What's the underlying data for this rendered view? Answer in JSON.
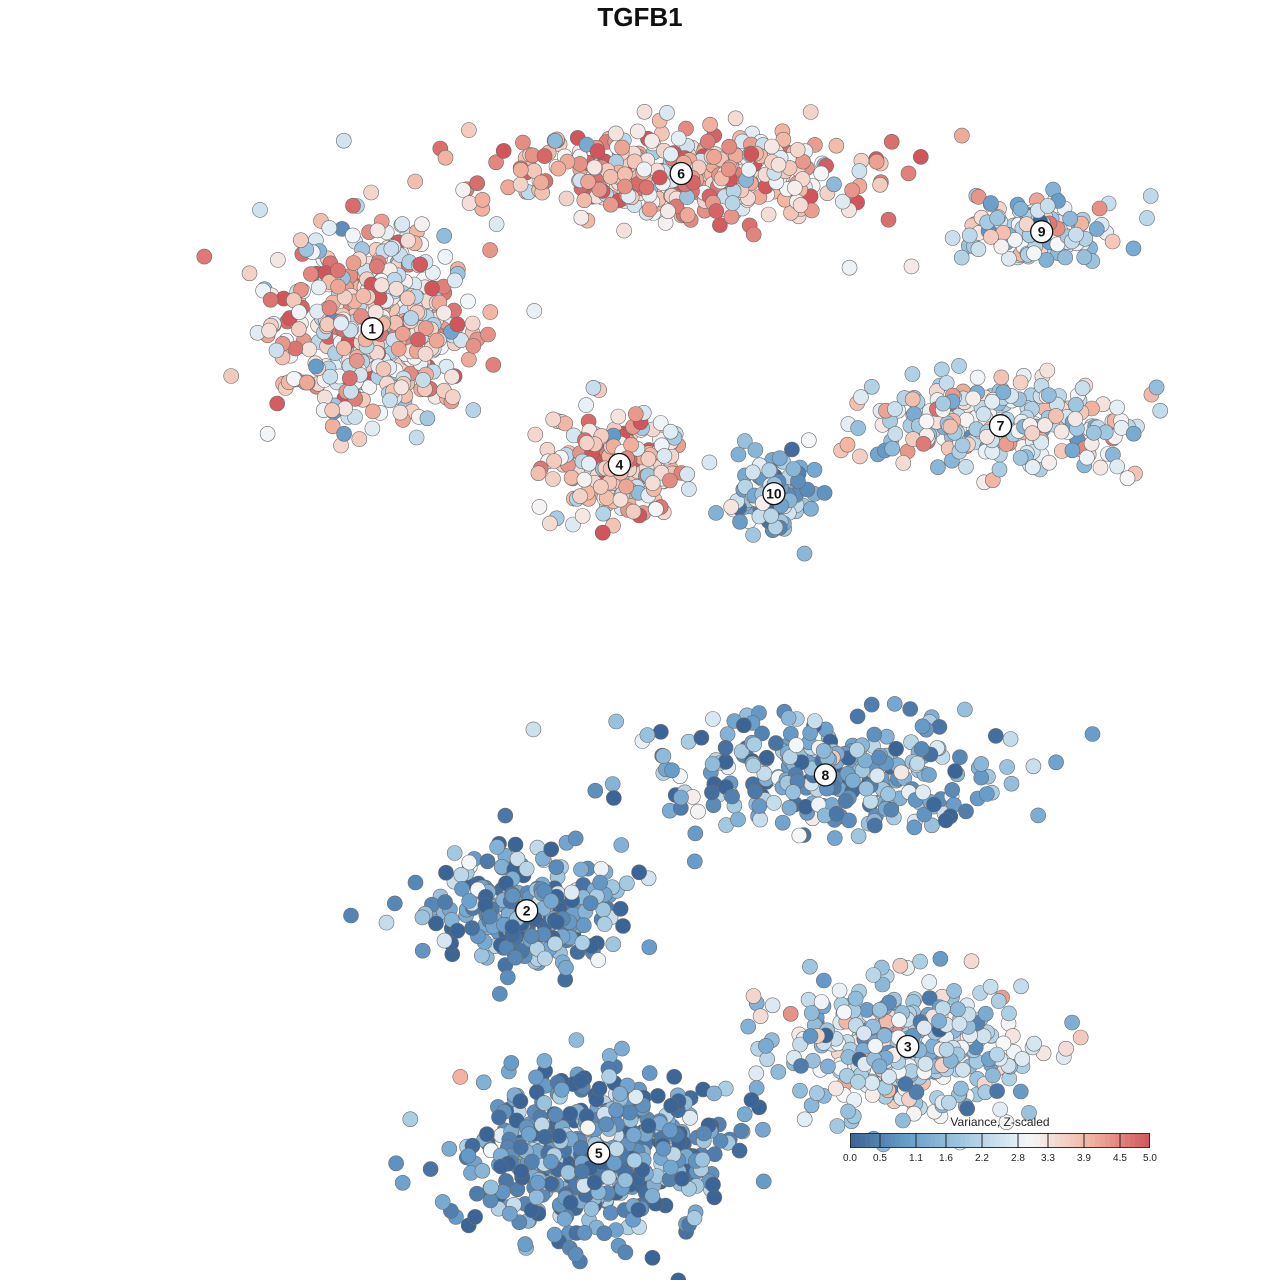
{
  "title": "TGFB1",
  "chart_data": {
    "type": "scatter",
    "title": "TGFB1",
    "xlabel": "",
    "ylabel": "",
    "color_scale": {
      "title": "Variance, Z-scaled",
      "min": 0.0,
      "max": 5.0,
      "ticks": [
        "0.0",
        "0.5",
        "1.1",
        "1.6",
        "2.2",
        "2.8",
        "3.3",
        "3.9",
        "4.5",
        "5.0"
      ],
      "colors": [
        "#3b6596",
        "#6a9fcc",
        "#a9cde3",
        "#f5f7f9",
        "#f2b4a0",
        "#d1555b"
      ]
    },
    "grid": false,
    "clusters": [
      {
        "label": "1",
        "cx": -2.6,
        "cy": 2.9,
        "mean_expression": 3.3
      },
      {
        "label": "2",
        "cx": -1.1,
        "cy": -3.1,
        "mean_expression": 1.0
      },
      {
        "label": "3",
        "cx": 2.6,
        "cy": -4.5,
        "mean_expression": 2.0
      },
      {
        "label": "4",
        "cx": -0.2,
        "cy": 1.5,
        "mean_expression": 3.6
      },
      {
        "label": "5",
        "cx": -0.4,
        "cy": -5.6,
        "mean_expression": 0.8
      },
      {
        "label": "6",
        "cx": 0.4,
        "cy": 4.5,
        "mean_expression": 3.7
      },
      {
        "label": "7",
        "cx": 3.5,
        "cy": 1.9,
        "mean_expression": 2.7
      },
      {
        "label": "8",
        "cx": 1.8,
        "cy": -1.7,
        "mean_expression": 1.2
      },
      {
        "label": "9",
        "cx": 3.9,
        "cy": 3.9,
        "mean_expression": 2.4
      },
      {
        "label": "10",
        "cx": 1.3,
        "cy": 1.2,
        "mean_expression": 1.6
      }
    ]
  }
}
